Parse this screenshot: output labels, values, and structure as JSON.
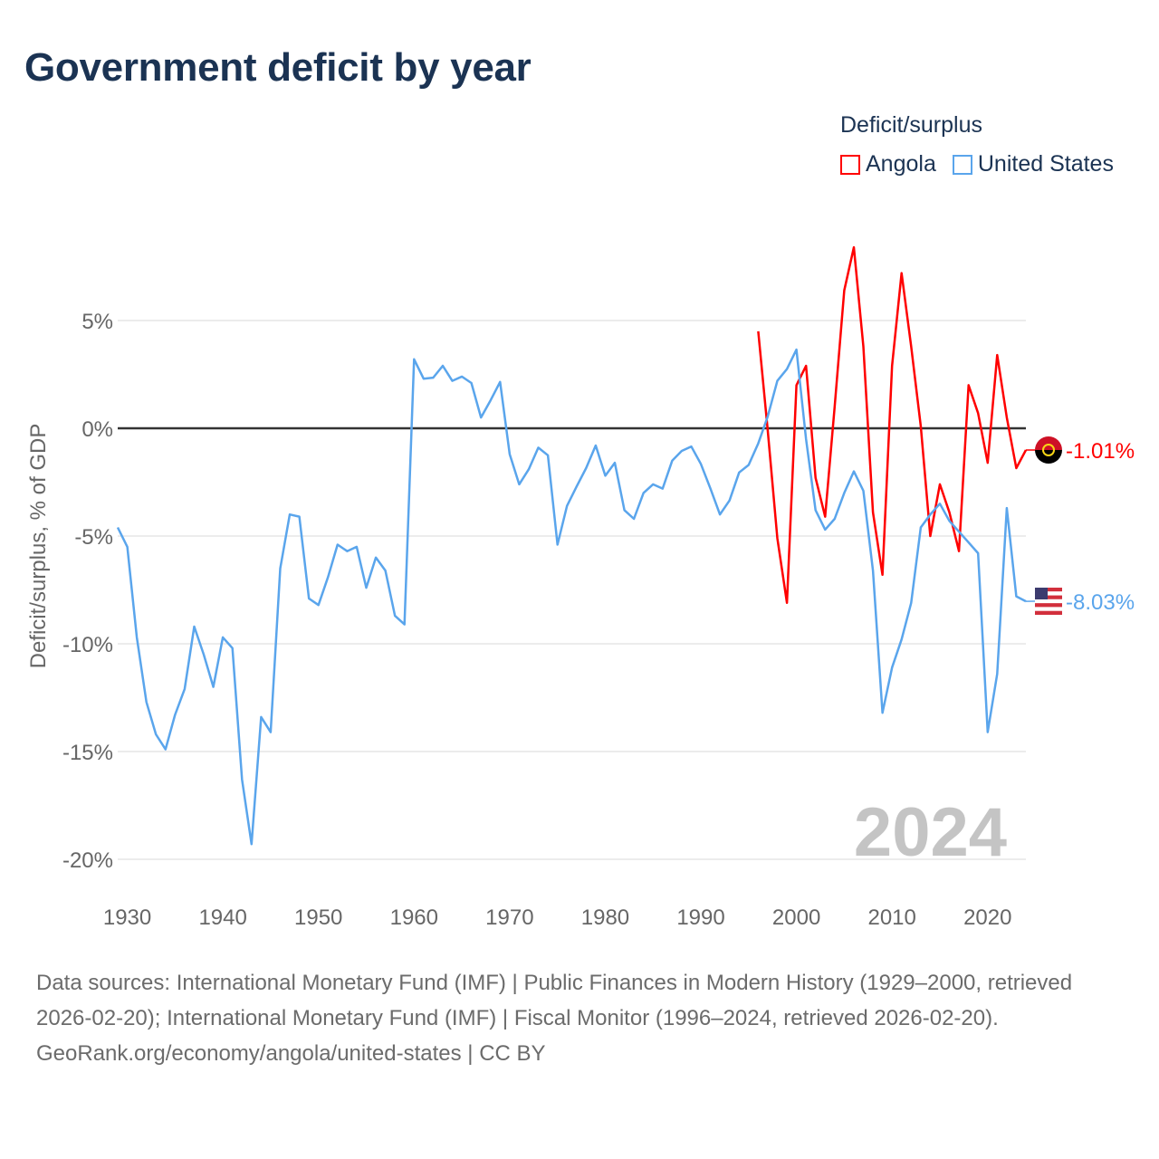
{
  "title": "Government deficit by year",
  "legend": {
    "title": "Deficit/surplus",
    "items": [
      {
        "name": "Angola",
        "color": "#ff0000"
      },
      {
        "name": "United States",
        "color": "#5aa5ec"
      }
    ]
  },
  "year_watermark": "2024",
  "footer": {
    "sources": "Data sources: International Monetary Fund (IMF) | Public Finances in Modern History (1929–2000, retrieved 2026-02-20); International Monetary Fund (IMF) | Fiscal Monitor (1996–2024, retrieved 2026-02-20).",
    "credit": "GeoRank.org/economy/angola/united-states | CC BY"
  },
  "chart_data": {
    "type": "line",
    "title": "Government deficit by year",
    "xlabel": "",
    "ylabel": "Deficit/surplus, % of GDP",
    "xlim": [
      1929,
      2024
    ],
    "ylim": [
      -20,
      8.5
    ],
    "x_ticks": [
      1930,
      1940,
      1950,
      1960,
      1970,
      1980,
      1990,
      2000,
      2010,
      2020
    ],
    "x_tick_labels": [
      "1930",
      "1940",
      "1950",
      "1960",
      "1970",
      "1980",
      "1990",
      "2000",
      "2010",
      "2020"
    ],
    "y_ticks": [
      5,
      0,
      -5,
      -10,
      -15,
      -20
    ],
    "y_tick_labels": [
      "5%",
      "0%",
      "-5%",
      "-10%",
      "-15%",
      "-20%"
    ],
    "grid": true,
    "legend_position": "top-right",
    "series": [
      {
        "name": "Angola",
        "color": "#ff0000",
        "start_year": 1996,
        "end_label": "-1.01%",
        "values": [
          4.5,
          -0.1,
          -5.1,
          -8.1,
          2.0,
          2.9,
          -2.3,
          -4.1,
          1.0,
          6.4,
          8.4,
          3.8,
          -3.9,
          -6.8,
          2.9,
          7.2,
          3.8,
          0.1,
          -5.0,
          -2.6,
          -3.9,
          -5.7,
          2.0,
          0.7,
          -1.6,
          3.4,
          0.5,
          -1.85,
          -1.01
        ]
      },
      {
        "name": "United States",
        "color": "#5aa5ec",
        "start_year": 1929,
        "end_label": "-8.03%",
        "values": [
          -4.6,
          -5.5,
          -9.7,
          -12.7,
          -14.2,
          -14.9,
          -13.3,
          -12.1,
          -9.2,
          -10.5,
          -12.0,
          -9.7,
          -10.2,
          -16.3,
          -19.3,
          -13.4,
          -14.1,
          -6.5,
          -4.0,
          -4.1,
          -7.9,
          -8.2,
          -6.9,
          -5.4,
          -5.7,
          -5.5,
          -7.4,
          -6.0,
          -6.6,
          -8.7,
          -9.1,
          3.2,
          2.3,
          2.35,
          2.9,
          2.2,
          2.4,
          2.1,
          0.5,
          1.3,
          2.15,
          -1.2,
          -2.6,
          -1.9,
          -0.9,
          -1.25,
          -5.4,
          -3.6,
          -2.7,
          -1.85,
          -0.8,
          -2.2,
          -1.6,
          -3.8,
          -4.2,
          -3.0,
          -2.6,
          -2.8,
          -1.5,
          -1.05,
          -0.85,
          -1.65,
          -2.8,
          -4.0,
          -3.35,
          -2.05,
          -1.7,
          -0.7,
          0.55,
          2.2,
          2.75,
          3.65,
          -0.5,
          -3.8,
          -4.7,
          -4.2,
          -3.0,
          -2.0,
          -2.9,
          -6.6,
          -13.2,
          -11.1,
          -9.8,
          -8.1,
          -4.6,
          -4.0,
          -3.5,
          -4.3,
          -4.8,
          -5.3,
          -5.8,
          -14.1,
          -11.4,
          -3.7,
          -7.8,
          -8.03
        ]
      }
    ]
  }
}
